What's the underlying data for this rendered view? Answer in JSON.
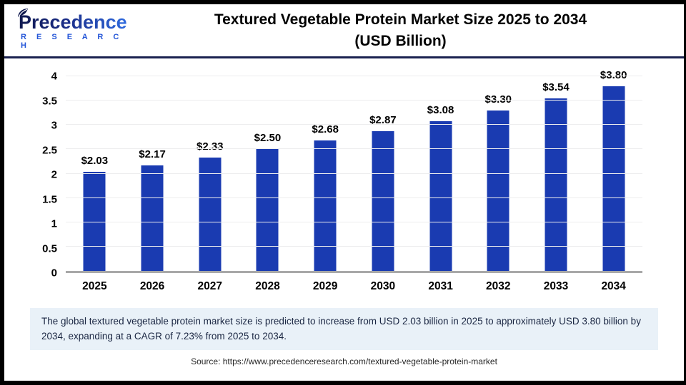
{
  "brand": {
    "name_top": "Precedence",
    "name_bottom": "R E S E A R C H",
    "color_dark": "#10194F",
    "color_light": "#2F6BE0"
  },
  "header": {
    "title_line1": "Textured Vegetable Protein Market Size 2025 to 2034",
    "title_line2": "(USD Billion)"
  },
  "chart_data": {
    "type": "bar",
    "title": "Textured Vegetable Protein Market Size 2025 to 2034 (USD Billion)",
    "categories": [
      "2025",
      "2026",
      "2027",
      "2028",
      "2029",
      "2030",
      "2031",
      "2032",
      "2033",
      "2034"
    ],
    "values": [
      2.03,
      2.17,
      2.33,
      2.5,
      2.68,
      2.87,
      3.08,
      3.3,
      3.54,
      3.8
    ],
    "value_labels": [
      "$2.03",
      "$2.17",
      "$2.33",
      "$2.50",
      "$2.68",
      "$2.87",
      "$3.08",
      "$3.30",
      "$3.54",
      "$3.80"
    ],
    "xlabel": "",
    "ylabel": "",
    "ylim": [
      0,
      4
    ],
    "ytick_step": 0.5,
    "grid": true,
    "legend": false,
    "bar_color": "#1A3BB1",
    "axis_line_color": "#A8A8A8",
    "gridline_color": "#EDEDEE"
  },
  "summary": {
    "text": "The global textured vegetable protein market size is predicted to increase from USD 2.03 billion in 2025 to approximately USD 3.80 billion by 2034, expanding at a CAGR of 7.23% from 2025 to 2034."
  },
  "source": {
    "text": "Source: https://www.precedenceresearch.com/textured-vegetable-protein-market"
  }
}
